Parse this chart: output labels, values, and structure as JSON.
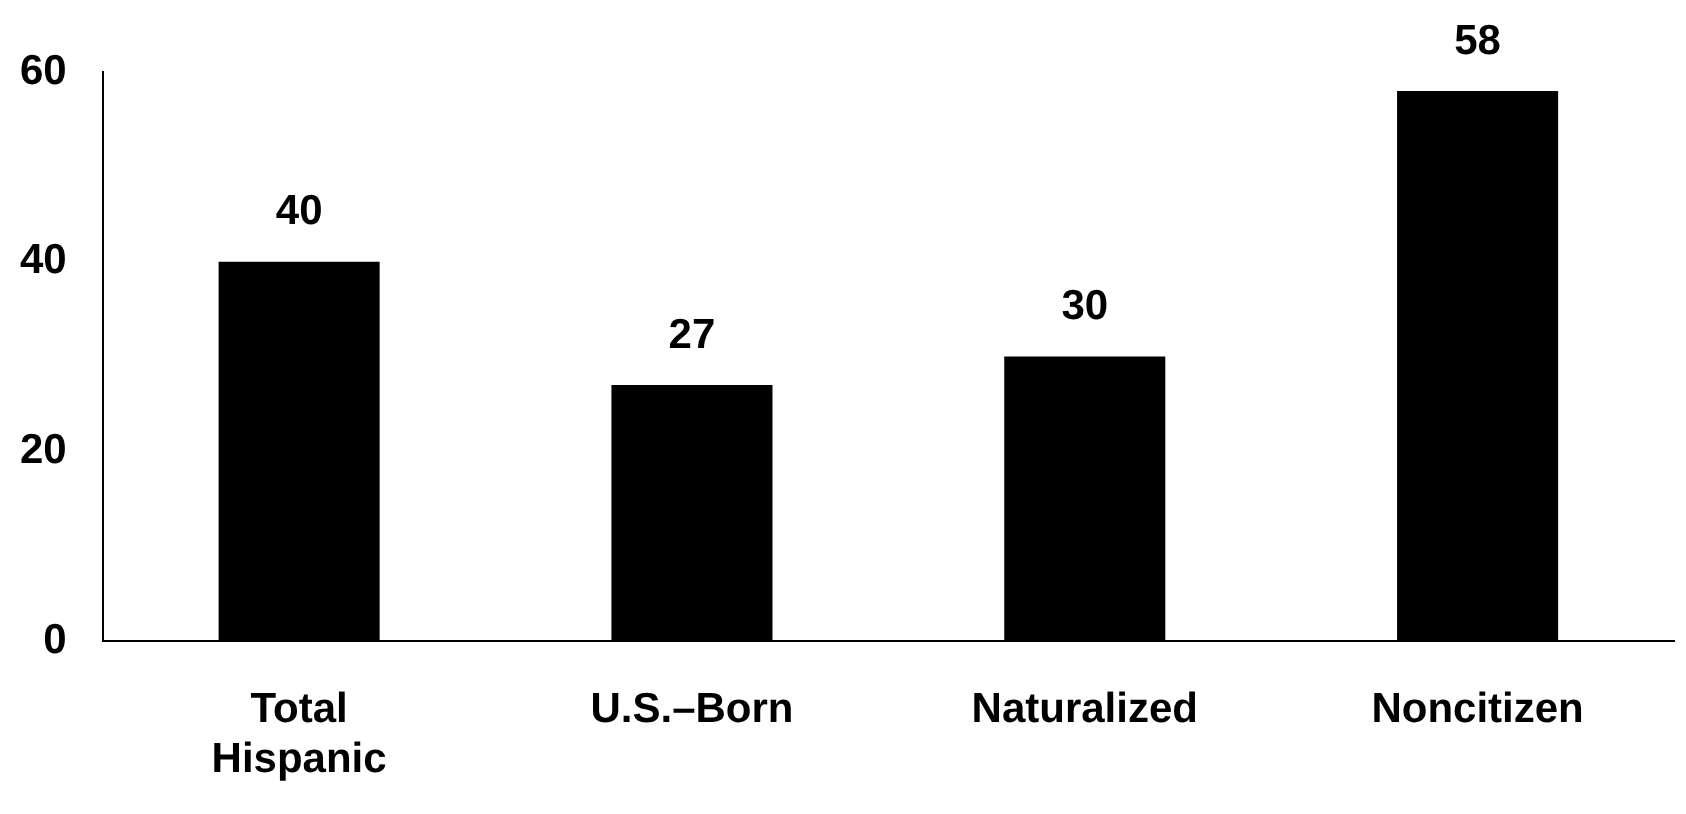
{
  "chart_data": {
    "type": "bar",
    "categories": [
      "Total Hispanic",
      "U.S.–Born",
      "Naturalized",
      "Noncitizen"
    ],
    "values": [
      40,
      27,
      30,
      58
    ],
    "color": "#000000",
    "ylim": [
      0,
      60
    ],
    "yticks": [
      0,
      20,
      40,
      60
    ],
    "grid": false,
    "legend": false,
    "data_labels": true
  }
}
